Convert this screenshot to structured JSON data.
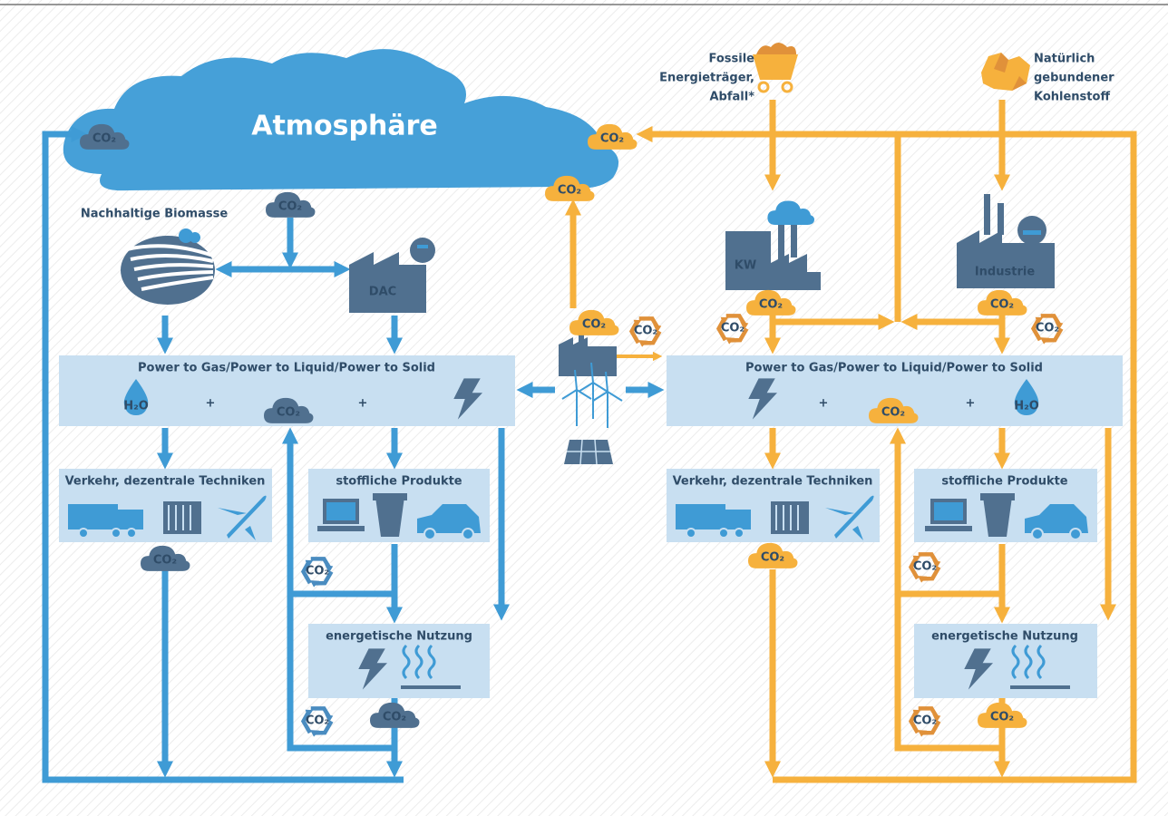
{
  "atmosphere": "Atmosphäre",
  "co2": "CO₂",
  "h2o": "H₂O",
  "plus": "+",
  "sources": {
    "fossil": [
      "Fossile",
      "Energieträger,",
      "Abfall*"
    ],
    "natural": [
      "Natürlich",
      "gebundener",
      "Kohlenstoff"
    ]
  },
  "biomass": "Nachhaltige Biomasse",
  "dac": "DAC",
  "kw": "KW",
  "industry": "Industrie",
  "left": {
    "conversion": "Power to Gas/Power to Liquid/Power to Solid",
    "transport": "Verkehr, dezentrale Techniken",
    "products": "stoffliche Produkte",
    "energy": "energetische Nutzung"
  },
  "right": {
    "conversion": "Power to Gas/Power to Liquid/Power to Solid",
    "transport": "Verkehr, dezentrale Techniken",
    "products": "stoffliche Produkte",
    "energy": "energetische Nutzung"
  }
}
